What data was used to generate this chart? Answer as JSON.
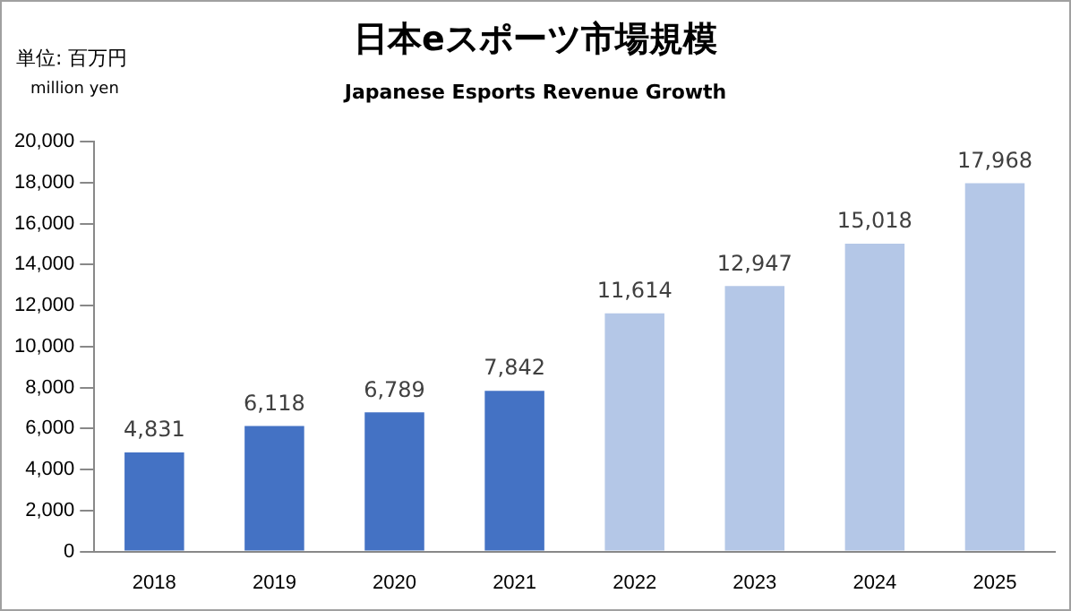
{
  "chart_data": {
    "type": "bar",
    "title": "日本eスポーツ市場規模",
    "subtitle": "Japanese Esports Revenue Growth",
    "annotations": [
      "単位: 百万円",
      "million yen"
    ],
    "categories": [
      "2018",
      "2019",
      "2020",
      "2021",
      "2022",
      "2023",
      "2024",
      "2025"
    ],
    "values": [
      4831,
      6118,
      6789,
      7842,
      11614,
      12947,
      15018,
      17968
    ],
    "colors": [
      "#4472c4",
      "#4472c4",
      "#4472c4",
      "#4472c4",
      "#b4c7e7",
      "#b4c7e7",
      "#b4c7e7",
      "#b4c7e7"
    ],
    "value_labels": [
      "4,831",
      "6,118",
      "6,789",
      "7,842",
      "11,614",
      "12,947",
      "15,018",
      "17,968"
    ],
    "ylim": [
      0,
      20000
    ],
    "yticks": [
      {
        "value": 0,
        "label": "0"
      },
      {
        "value": 2000,
        "label": "2,000"
      },
      {
        "value": 4000,
        "label": "4,000"
      },
      {
        "value": 6000,
        "label": "6,000"
      },
      {
        "value": 8000,
        "label": "8,000"
      },
      {
        "value": 10000,
        "label": "10,000"
      },
      {
        "value": 12000,
        "label": "12,000"
      },
      {
        "value": 14000,
        "label": "14,000"
      },
      {
        "value": 16000,
        "label": "16,000"
      },
      {
        "value": 18000,
        "label": "18,000"
      },
      {
        "value": 20000,
        "label": "20,000"
      }
    ],
    "grid": false,
    "legend": false
  }
}
